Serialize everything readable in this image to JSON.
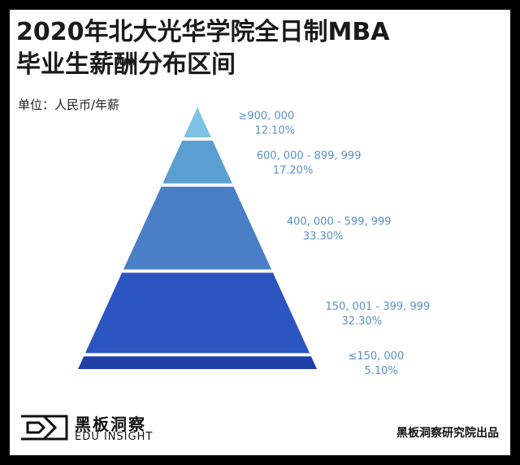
{
  "title_line1": "2020年北大光华学院全日制MBA",
  "title_line2": "毕业生薪酬分布区间",
  "unit_label": "单位：人民币/年薪",
  "logo": {
    "cn": "黑板洞察",
    "en": "EDU INSIGHT"
  },
  "source": "黑板洞察研究院出品",
  "chart_data": {
    "type": "pyramid",
    "categories": [
      "≥900, 000",
      "600, 000 - 899, 999",
      "400, 000 - 599, 999",
      "150, 001 - 399, 999",
      "≤150, 000"
    ],
    "values": [
      12.1,
      17.2,
      33.3,
      32.3,
      5.1
    ],
    "value_labels": [
      "12.10%",
      "17.20%",
      "33.30%",
      "32.30%",
      "5.10%"
    ],
    "colors": [
      "#7ec3e3",
      "#5b9fd2",
      "#4a7fc8",
      "#2b55c0",
      "#1f3fa6"
    ],
    "label_color": "#5a8fca"
  }
}
